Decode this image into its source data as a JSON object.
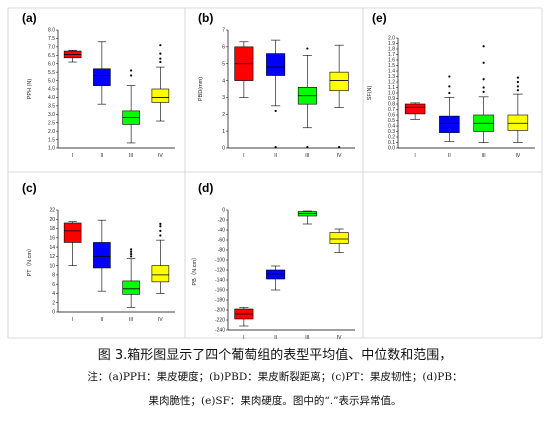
{
  "caption": {
    "title": "图 3.箱形图显示了四个葡萄组的表型平均值、中位数和范围，",
    "note_line1": "注：(a)PPH：果皮硬度；(b)PBD：果皮断裂距离；(c)PT：果皮韧性；(d)PB：",
    "note_line2": "果肉脆性；(e)SF：果肉硬度。图中的“.”表示异常值。"
  },
  "colors": {
    "I": "#ff0000",
    "II": "#0000ff",
    "III": "#00ff00",
    "IV": "#ffff00"
  },
  "chart_data": [
    {
      "panel": "(a)",
      "type": "box",
      "ylabel": "PPH (N)",
      "categories": [
        "I",
        "II",
        "III",
        "IV"
      ],
      "yticks": [
        "1.0",
        "1.5",
        "2.0",
        "2.5",
        "3.0",
        "3.5",
        "4.0",
        "4.5",
        "5.0",
        "5.5",
        "6.0",
        "6.5",
        "7.0",
        "7.5",
        "8.0"
      ],
      "ylim": [
        1.0,
        8.0
      ],
      "boxes": [
        {
          "min": 6.1,
          "q1": 6.35,
          "median": 6.55,
          "q3": 6.75,
          "max": 6.8,
          "outliers": []
        },
        {
          "min": 3.6,
          "q1": 4.7,
          "median": 5.3,
          "q3": 5.7,
          "max": 7.3,
          "outliers": []
        },
        {
          "min": 1.3,
          "q1": 2.4,
          "median": 2.8,
          "q3": 3.2,
          "max": 4.7,
          "outliers": [
            5.3,
            5.6
          ]
        },
        {
          "min": 2.6,
          "q1": 3.7,
          "median": 4.0,
          "q3": 4.5,
          "max": 5.8,
          "outliers": [
            6.1,
            6.3,
            6.6,
            7.1
          ]
        }
      ]
    },
    {
      "panel": "(b)",
      "type": "box",
      "ylabel": "PBD(mm)",
      "categories": [
        "I",
        "II",
        "III",
        "IV"
      ],
      "yticks": [
        "0",
        "1",
        "2",
        "3",
        "4",
        "5",
        "6",
        "7"
      ],
      "ylim": [
        0,
        7
      ],
      "boxes": [
        {
          "min": 3.0,
          "q1": 4.0,
          "median": 5.0,
          "q3": 6.0,
          "max": 6.3,
          "outliers": []
        },
        {
          "min": 2.5,
          "q1": 4.3,
          "median": 4.8,
          "q3": 5.6,
          "max": 6.4,
          "outliers": [
            2.2,
            0.05
          ]
        },
        {
          "min": 1.2,
          "q1": 2.6,
          "median": 3.1,
          "q3": 3.6,
          "max": 5.5,
          "outliers": [
            5.9,
            0.05
          ]
        },
        {
          "min": 2.4,
          "q1": 3.4,
          "median": 4.0,
          "q3": 4.5,
          "max": 6.1,
          "outliers": [
            0.05
          ]
        }
      ]
    },
    {
      "panel": "(c)",
      "type": "box",
      "ylabel": "PT（N.cm）",
      "categories": [
        "I",
        "II",
        "III",
        "IV"
      ],
      "yticks": [
        "0",
        "2",
        "4",
        "6",
        "8",
        "10",
        "12",
        "14",
        "16",
        "18",
        "20",
        "22"
      ],
      "ylim": [
        0,
        22
      ],
      "boxes": [
        {
          "min": 10.0,
          "q1": 15.0,
          "median": 17.5,
          "q3": 19.2,
          "max": 19.5,
          "outliers": []
        },
        {
          "min": 4.5,
          "q1": 9.5,
          "median": 12.0,
          "q3": 15.0,
          "max": 19.8,
          "outliers": []
        },
        {
          "min": 1.0,
          "q1": 3.8,
          "median": 5.0,
          "q3": 6.7,
          "max": 11.5,
          "outliers": [
            12.0,
            12.5,
            13.0,
            13.5
          ]
        },
        {
          "min": 4.0,
          "q1": 6.5,
          "median": 8.0,
          "q3": 10.0,
          "max": 15.5,
          "outliers": [
            16.5,
            17.5,
            18.5,
            19.0
          ]
        }
      ]
    },
    {
      "panel": "(d)",
      "type": "box",
      "ylabel": "PB（N.cm）",
      "categories": [
        "I",
        "II",
        "III",
        "IV"
      ],
      "yticks": [
        "0",
        "-20",
        "-40",
        "-60",
        "-80",
        "-100",
        "-120",
        "-140",
        "-160",
        "-180",
        "-200",
        "-220",
        "-240"
      ],
      "ylim": [
        -240,
        0
      ],
      "boxes": [
        {
          "min": -232,
          "q1": -218,
          "median": -208,
          "q3": -198,
          "max": -195,
          "outliers": []
        },
        {
          "min": -160,
          "q1": -138,
          "median": -128,
          "q3": -120,
          "max": -112,
          "outliers": []
        },
        {
          "min": -28,
          "q1": -12,
          "median": -7,
          "q3": -3,
          "max": -2,
          "outliers": []
        },
        {
          "min": -85,
          "q1": -67,
          "median": -58,
          "q3": -45,
          "max": -38,
          "outliers": []
        }
      ]
    },
    {
      "panel": "(e)",
      "type": "box",
      "ylabel": "SF(N)",
      "categories": [
        "I",
        "II",
        "III",
        "IV"
      ],
      "yticks": [
        "0.0",
        "0.1",
        "0.2",
        "0.3",
        "0.4",
        "0.5",
        "0.6",
        "0.7",
        "0.8",
        "0.9",
        "1.0",
        "1.1",
        "1.2",
        "1.3",
        "1.4",
        "1.5",
        "1.6",
        "1.7",
        "1.8",
        "1.9",
        "2.0"
      ],
      "ylim": [
        0,
        2.0
      ],
      "boxes": [
        {
          "min": 0.52,
          "q1": 0.62,
          "median": 0.74,
          "q3": 0.8,
          "max": 0.82,
          "outliers": []
        },
        {
          "min": 0.12,
          "q1": 0.28,
          "median": 0.45,
          "q3": 0.58,
          "max": 0.92,
          "outliers": [
            1.0,
            1.12,
            1.3
          ]
        },
        {
          "min": 0.1,
          "q1": 0.3,
          "median": 0.45,
          "q3": 0.6,
          "max": 0.93,
          "outliers": [
            1.02,
            1.1,
            1.25,
            1.55,
            1.85
          ]
        },
        {
          "min": 0.1,
          "q1": 0.32,
          "median": 0.45,
          "q3": 0.6,
          "max": 0.98,
          "outliers": [
            1.05,
            1.12,
            1.2,
            1.28
          ]
        }
      ]
    }
  ]
}
